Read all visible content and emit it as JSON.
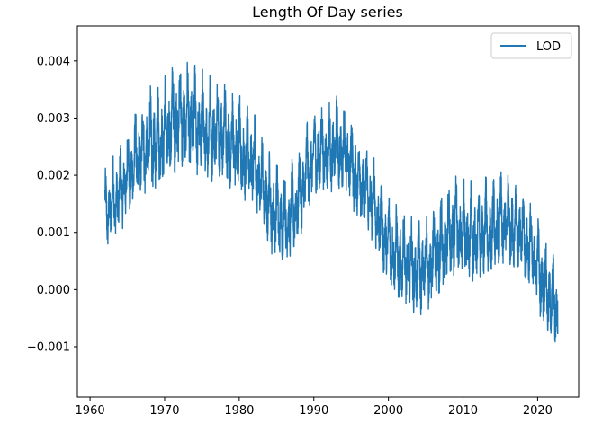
{
  "chart_data": {
    "type": "line",
    "title": "Length Of Day series",
    "xlabel": "",
    "ylabel": "",
    "xlim": [
      1958.3,
      2025.5
    ],
    "ylim": [
      -0.00188,
      0.00461
    ],
    "xticks": [
      1960,
      1970,
      1980,
      1990,
      2000,
      2010,
      2020
    ],
    "yticks": [
      -0.001,
      0.0,
      0.001,
      0.002,
      0.003,
      0.004
    ],
    "xtick_labels": [
      "1960",
      "1970",
      "1980",
      "1990",
      "2000",
      "2010",
      "2020"
    ],
    "ytick_labels": [
      "−0.001",
      "0.000",
      "0.001",
      "0.002",
      "0.003",
      "0.004"
    ],
    "grid": false,
    "legend_position": "top-right",
    "color": "#1f77b4",
    "series": [
      {
        "name": "LOD",
        "trend": [
          [
            1962.0,
            0.0013
          ],
          [
            1963.0,
            0.0015
          ],
          [
            1964.0,
            0.0017
          ],
          [
            1965.0,
            0.002
          ],
          [
            1966.0,
            0.0022
          ],
          [
            1967.0,
            0.0024
          ],
          [
            1968.0,
            0.0025
          ],
          [
            1969.0,
            0.0026
          ],
          [
            1970.0,
            0.0027
          ],
          [
            1971.0,
            0.0029
          ],
          [
            1972.0,
            0.003
          ],
          [
            1973.0,
            0.00295
          ],
          [
            1974.0,
            0.0029
          ],
          [
            1975.0,
            0.0028
          ],
          [
            1976.0,
            0.00275
          ],
          [
            1977.0,
            0.0028
          ],
          [
            1978.0,
            0.0027
          ],
          [
            1979.0,
            0.0025
          ],
          [
            1980.0,
            0.0024
          ],
          [
            1981.0,
            0.0023
          ],
          [
            1982.0,
            0.0022
          ],
          [
            1983.0,
            0.0018
          ],
          [
            1984.0,
            0.0015
          ],
          [
            1985.0,
            0.0013
          ],
          [
            1986.0,
            0.0012
          ],
          [
            1987.0,
            0.0013
          ],
          [
            1988.0,
            0.0016
          ],
          [
            1989.0,
            0.002
          ],
          [
            1990.0,
            0.0023
          ],
          [
            1991.0,
            0.0024
          ],
          [
            1992.0,
            0.0024
          ],
          [
            1993.0,
            0.0025
          ],
          [
            1994.0,
            0.0024
          ],
          [
            1995.0,
            0.0022
          ],
          [
            1996.0,
            0.0019
          ],
          [
            1997.0,
            0.0017
          ],
          [
            1998.0,
            0.0015
          ],
          [
            1999.0,
            0.0011
          ],
          [
            2000.0,
            0.0008
          ],
          [
            2001.0,
            0.0006
          ],
          [
            2002.0,
            0.0005
          ],
          [
            2003.0,
            0.0004
          ],
          [
            2004.0,
            0.0003
          ],
          [
            2005.0,
            0.0004
          ],
          [
            2006.0,
            0.0005
          ],
          [
            2007.0,
            0.0007
          ],
          [
            2008.0,
            0.0009
          ],
          [
            2009.0,
            0.001
          ],
          [
            2010.0,
            0.001
          ],
          [
            2011.0,
            0.0009
          ],
          [
            2012.0,
            0.0009
          ],
          [
            2013.0,
            0.001
          ],
          [
            2014.0,
            0.001
          ],
          [
            2015.0,
            0.0011
          ],
          [
            2016.0,
            0.0012
          ],
          [
            2017.0,
            0.0011
          ],
          [
            2018.0,
            0.0009
          ],
          [
            2019.0,
            0.0007
          ],
          [
            2020.0,
            0.0004
          ],
          [
            2021.0,
            0.0
          ],
          [
            2022.0,
            -0.0002
          ],
          [
            2022.7,
            -0.0004
          ]
        ],
        "amplitude": [
          [
            1962.0,
            0.0007
          ],
          [
            1970.0,
            0.001
          ],
          [
            1980.0,
            0.0009
          ],
          [
            1990.0,
            0.0008
          ],
          [
            2000.0,
            0.0008
          ],
          [
            2010.0,
            0.0009
          ],
          [
            2020.0,
            0.0008
          ],
          [
            2022.7,
            0.0008
          ]
        ]
      }
    ]
  }
}
